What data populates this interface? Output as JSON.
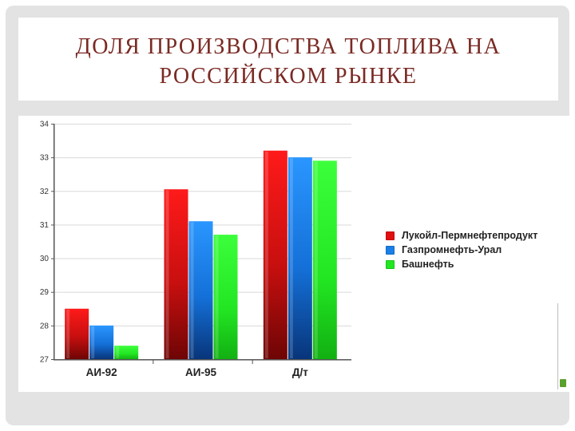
{
  "title": {
    "line1": "ДОЛЯ ПРОИЗВОДСТВА ТОПЛИВА НА",
    "line2": "РОССИЙСКОМ РЫНКЕ"
  },
  "chart_data": {
    "type": "bar",
    "title": "",
    "xlabel": "",
    "ylabel": "",
    "categories": [
      "АИ-92",
      "АИ-95",
      "Д/т"
    ],
    "series": [
      {
        "name": "Лукойл-Пермнефтепродукт",
        "color": "#e01010",
        "values": [
          28.5,
          32.05,
          33.2
        ]
      },
      {
        "name": "Газпромнефть-Урал",
        "color": "#1a7fe6",
        "values": [
          28.0,
          31.1,
          33.0
        ]
      },
      {
        "name": "Башнефть",
        "color": "#22e622",
        "values": [
          27.4,
          30.7,
          32.9
        ]
      }
    ],
    "ylim": [
      27,
      34
    ],
    "yticks": [
      27,
      28,
      29,
      30,
      31,
      32,
      33,
      34
    ],
    "grid": true,
    "legend_position": "right"
  }
}
